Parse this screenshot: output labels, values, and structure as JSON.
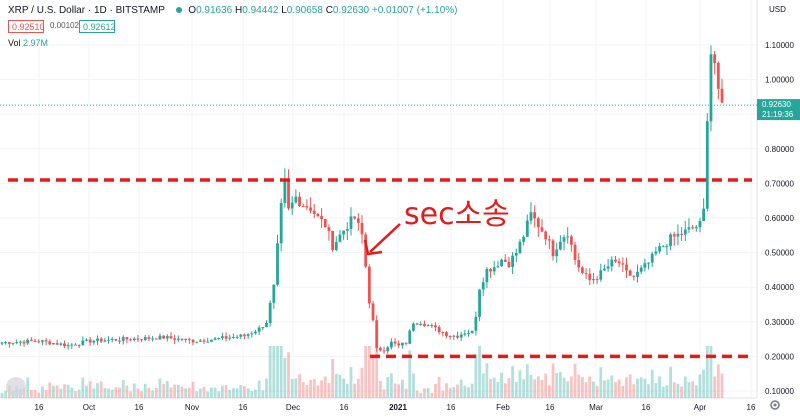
{
  "header": {
    "symbol": "XRP / U.S. Dollar",
    "interval": "1D",
    "exchange": "BITSTAMP",
    "open_label": "O",
    "open": "0.91636",
    "high_label": "H",
    "high": "0.94442",
    "low_label": "L",
    "low": "0.90658",
    "close_label": "C",
    "close": "0.92630",
    "change": "+0.01007 (+1.10%)",
    "bid": "0.92510",
    "spread": "0.00102",
    "ask": "0.92612",
    "vol_label": "Vol",
    "vol": "2.97M"
  },
  "currency_label": "USD",
  "annotation": "sec소송",
  "colors": {
    "up": "#26a69a",
    "down": "#ef5350",
    "marker": "#e31b1b",
    "grid": "#f0f3fa"
  },
  "chart_data": {
    "type": "candlestick",
    "y_ticks": [
      "1.10000",
      "1.00000",
      "0.90000",
      "0.80000",
      "0.70000",
      "0.60000",
      "0.50000",
      "0.40000",
      "0.30000",
      "0.20000",
      "0.10000"
    ],
    "x_ticks": [
      "16",
      "Oct",
      "16",
      "Nov",
      "16",
      "Dec",
      "16",
      "2021",
      "16",
      "Feb",
      "16",
      "Mar",
      "16",
      "Apr",
      "16"
    ],
    "last_price": "0.92630",
    "countdown": "21:19:36",
    "horizontal_lines": [
      0.71,
      0.2
    ],
    "close_anchors": [
      [
        0,
        0.24
      ],
      [
        10,
        0.245
      ],
      [
        18,
        0.232
      ],
      [
        24,
        0.245
      ],
      [
        34,
        0.25
      ],
      [
        44,
        0.255
      ],
      [
        52,
        0.245
      ],
      [
        58,
        0.25
      ],
      [
        66,
        0.26
      ],
      [
        70,
        0.28
      ],
      [
        72,
        0.3
      ],
      [
        74,
        0.4
      ],
      [
        76,
        0.63
      ],
      [
        77,
        0.7
      ],
      [
        78,
        0.62
      ],
      [
        80,
        0.66
      ],
      [
        82,
        0.64
      ],
      [
        84,
        0.63
      ],
      [
        86,
        0.6
      ],
      [
        88,
        0.58
      ],
      [
        90,
        0.52
      ],
      [
        92,
        0.55
      ],
      [
        94,
        0.58
      ],
      [
        96,
        0.6
      ],
      [
        98,
        0.55
      ],
      [
        99,
        0.46
      ],
      [
        100,
        0.36
      ],
      [
        101,
        0.3
      ],
      [
        102,
        0.22
      ],
      [
        104,
        0.22
      ],
      [
        106,
        0.24
      ],
      [
        108,
        0.23
      ],
      [
        110,
        0.24
      ],
      [
        112,
        0.3
      ],
      [
        114,
        0.3
      ],
      [
        116,
        0.29
      ],
      [
        118,
        0.28
      ],
      [
        120,
        0.27
      ],
      [
        122,
        0.26
      ],
      [
        124,
        0.26
      ],
      [
        126,
        0.27
      ],
      [
        128,
        0.27
      ],
      [
        129,
        0.32
      ],
      [
        130,
        0.4
      ],
      [
        132,
        0.45
      ],
      [
        134,
        0.46
      ],
      [
        136,
        0.48
      ],
      [
        138,
        0.47
      ],
      [
        140,
        0.5
      ],
      [
        142,
        0.55
      ],
      [
        144,
        0.61
      ],
      [
        146,
        0.58
      ],
      [
        148,
        0.55
      ],
      [
        150,
        0.5
      ],
      [
        152,
        0.54
      ],
      [
        154,
        0.56
      ],
      [
        156,
        0.48
      ],
      [
        158,
        0.44
      ],
      [
        160,
        0.42
      ],
      [
        162,
        0.43
      ],
      [
        164,
        0.45
      ],
      [
        166,
        0.47
      ],
      [
        168,
        0.47
      ],
      [
        170,
        0.44
      ],
      [
        172,
        0.43
      ],
      [
        174,
        0.45
      ],
      [
        176,
        0.47
      ],
      [
        178,
        0.5
      ],
      [
        180,
        0.52
      ],
      [
        182,
        0.54
      ],
      [
        184,
        0.55
      ],
      [
        186,
        0.56
      ],
      [
        188,
        0.57
      ],
      [
        190,
        0.58
      ],
      [
        191,
        0.62
      ],
      [
        192,
        0.9
      ],
      [
        193,
        1.08
      ],
      [
        194,
        1.05
      ],
      [
        195,
        0.95
      ],
      [
        196,
        0.926
      ]
    ]
  }
}
